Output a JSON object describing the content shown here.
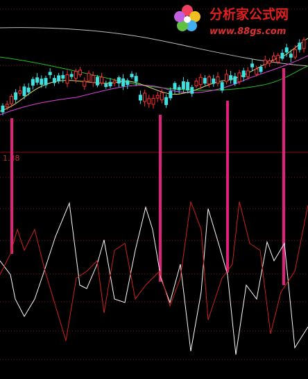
{
  "logo": {
    "title": "分析家公式网",
    "url": "www.88gs.com"
  },
  "axis_label": "1.38"
}
